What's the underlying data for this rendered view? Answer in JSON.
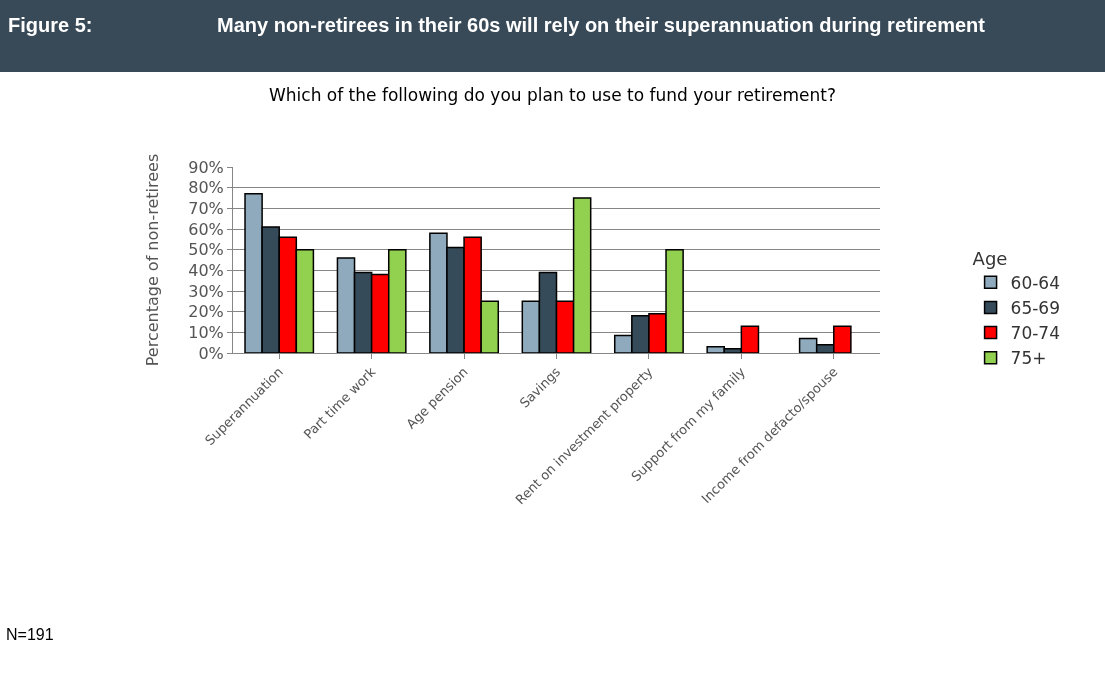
{
  "chart_data": {
    "type": "bar",
    "title": "Many non-retirees in their 60s will rely on their superannuation during retirement",
    "subtitle": "Which of the following do you plan to use to fund your retirement?",
    "ylabel": "Percentage of non-retirees",
    "legend_title": "Age",
    "annotations": [
      "Figure 5:",
      "N=191"
    ],
    "categories": [
      "Superannuation",
      "Part time work",
      "Age pension",
      "Savings",
      "Rent on investment property",
      "Support from my family",
      "Income from defacto/spouse"
    ],
    "series": [
      {
        "name": "60-64",
        "color": "#8faabc",
        "values": [
          77,
          46,
          58,
          25,
          8.5,
          3,
          7
        ]
      },
      {
        "name": "65-69",
        "color": "#364b59",
        "values": [
          61,
          39,
          51,
          39,
          18,
          2,
          4
        ]
      },
      {
        "name": "70-74",
        "color": "#ff0000",
        "values": [
          56,
          38,
          56,
          25,
          19,
          13,
          13
        ]
      },
      {
        "name": "75+",
        "color": "#92d050",
        "values": [
          50,
          50,
          25,
          75,
          50,
          null,
          null
        ]
      }
    ],
    "ylim": [
      0,
      90
    ],
    "yticks": [
      {
        "value": 0,
        "label": "0%"
      },
      {
        "value": 10,
        "label": "10%"
      },
      {
        "value": 20,
        "label": "20%"
      },
      {
        "value": 30,
        "label": "30%"
      },
      {
        "value": 40,
        "label": "40%"
      },
      {
        "value": 50,
        "label": "50%"
      },
      {
        "value": 60,
        "label": "60%"
      },
      {
        "value": 70,
        "label": "70%"
      },
      {
        "value": 80,
        "label": "80%"
      },
      {
        "value": 90,
        "label": "90%"
      }
    ],
    "grid": "y",
    "legend": "right"
  }
}
